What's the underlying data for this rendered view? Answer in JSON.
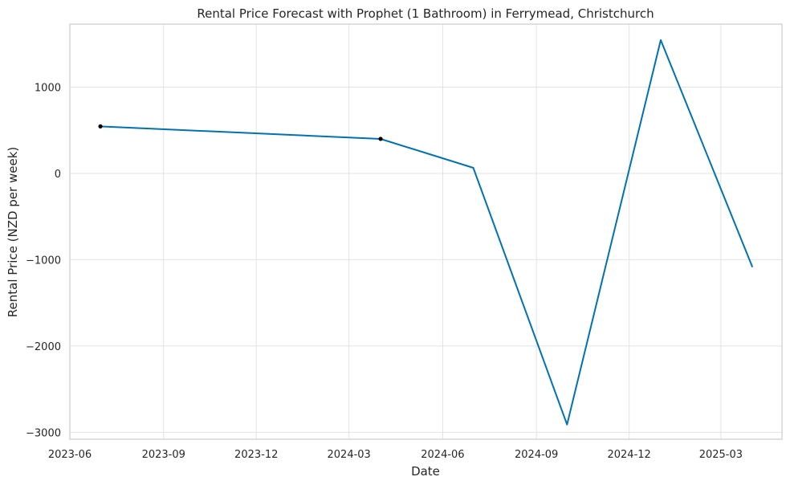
{
  "chart_data": {
    "type": "line",
    "title": "Rental Price Forecast with Prophet (1 Bathroom) in Ferrymead, Christchurch",
    "xlabel": "Date",
    "ylabel": "Rental Price (NZD per week)",
    "x_ticks": [
      "2023-06",
      "2023-09",
      "2023-12",
      "2024-03",
      "2024-06",
      "2024-09",
      "2024-12",
      "2025-03"
    ],
    "y_ticks": [
      "−3000",
      "−2000",
      "−1000",
      "0",
      "1000"
    ],
    "y_tick_values": [
      -3000,
      -2000,
      -1000,
      0,
      1000
    ],
    "ylim": [
      -3080,
      1730
    ],
    "xlim": [
      "2023-06-01",
      "2025-04-30"
    ],
    "grid": true,
    "series": [
      {
        "color": "#0072B2",
        "x": [
          "2023-07-01",
          "2024-04-01",
          "2024-07-01",
          "2024-10-01",
          "2025-01-01",
          "2025-04-01"
        ],
        "values": [
          545,
          400,
          65,
          -2910,
          1545,
          -1085
        ]
      }
    ],
    "observed_points": {
      "color": "#000000",
      "x": [
        "2023-07-01",
        "2024-04-01"
      ],
      "values": [
        545,
        400
      ]
    }
  }
}
